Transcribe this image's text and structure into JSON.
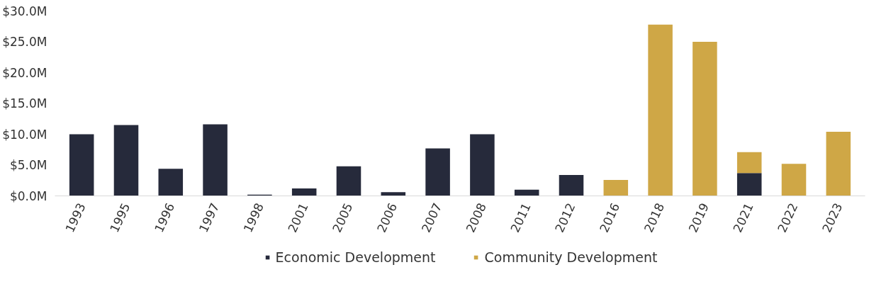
{
  "chart_data": {
    "type": "bar",
    "stacked": true,
    "categories": [
      "1993",
      "1995",
      "1996",
      "1997",
      "1998",
      "2001",
      "2005",
      "2006",
      "2007",
      "2008",
      "2011",
      "2012",
      "2016",
      "2018",
      "2019",
      "2021",
      "2022",
      "2023"
    ],
    "series": [
      {
        "name": "Economic Development",
        "color": "#262a3b",
        "values": [
          10.0,
          11.5,
          4.4,
          11.6,
          0.2,
          1.2,
          4.8,
          0.6,
          7.7,
          10.0,
          1.0,
          3.4,
          null,
          null,
          null,
          3.7,
          null,
          null
        ]
      },
      {
        "name": "Community Development",
        "color": "#cfa746",
        "values": [
          null,
          null,
          null,
          null,
          null,
          null,
          null,
          null,
          null,
          null,
          null,
          null,
          2.6,
          27.8,
          25.0,
          3.4,
          5.2,
          10.4
        ]
      }
    ],
    "ylim": [
      0,
      30
    ],
    "yticks": [
      {
        "value": 0,
        "label": "$0.0M"
      },
      {
        "value": 5,
        "label": "$5.0M"
      },
      {
        "value": 10,
        "label": "$10.0M"
      },
      {
        "value": 15,
        "label": "$15.0M"
      },
      {
        "value": 20,
        "label": "$20.0M"
      },
      {
        "value": 25,
        "label": "$25.0M"
      },
      {
        "value": 30,
        "label": "$30.0M"
      }
    ],
    "grid": false,
    "legend": "bottom"
  }
}
